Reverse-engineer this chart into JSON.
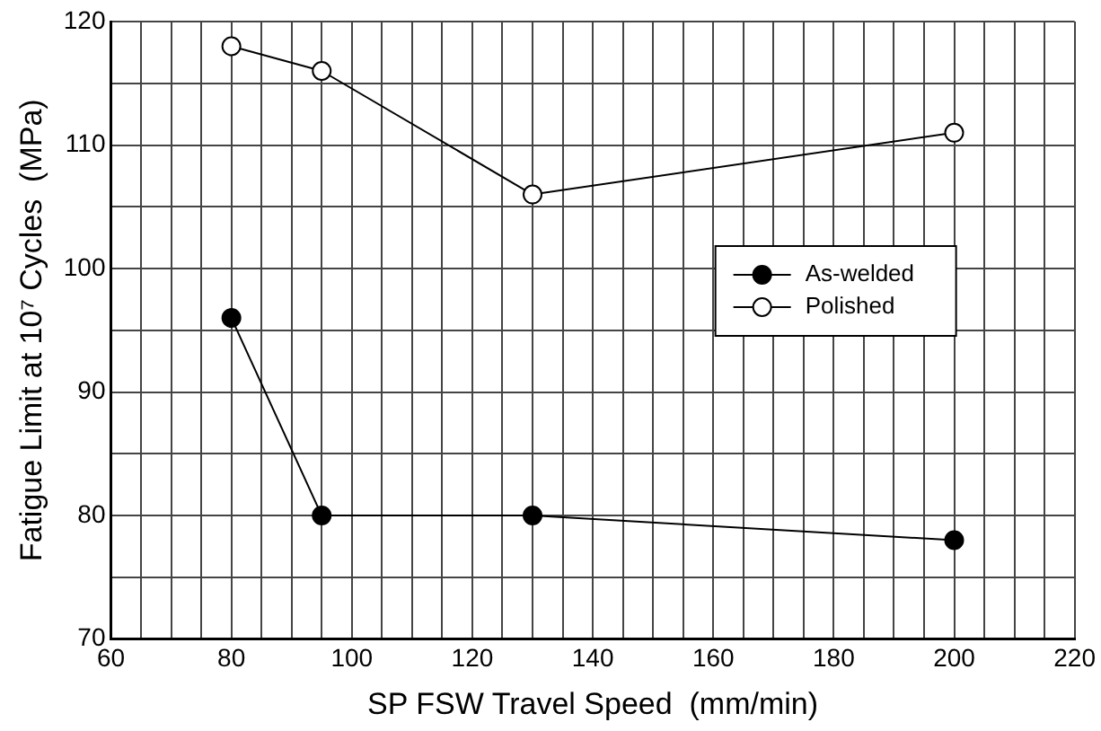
{
  "chart_data": {
    "type": "line",
    "xlabel": "SP FSW Travel Speed  (mm/min)",
    "ylabel": "Fatigue Limit at 10⁷ Cycles  (MPa)",
    "x": [
      80,
      95,
      130,
      200
    ],
    "series": [
      {
        "name": "As-welded",
        "color": "#000000",
        "values": [
          96,
          80,
          80,
          78
        ]
      },
      {
        "name": "Polished",
        "color": "#000000",
        "values": [
          118,
          116,
          106,
          111
        ]
      }
    ],
    "xlim": [
      60,
      220
    ],
    "ylim": [
      70,
      120
    ],
    "xticks": [
      60,
      {
        "value": 65,
        "label": null
      },
      {
        "value": 70,
        "label": null
      },
      {
        "value": 75,
        "label": null
      },
      80,
      {
        "value": 85,
        "label": null
      },
      {
        "value": 90,
        "label": null
      },
      {
        "value": 95,
        "label": null
      },
      100,
      {
        "value": 105,
        "label": null
      },
      {
        "value": 110,
        "label": null
      },
      {
        "value": 115,
        "label": null
      },
      120,
      {
        "value": 125,
        "label": null
      },
      {
        "value": 130,
        "label": null
      },
      {
        "value": 135,
        "label": null
      },
      140,
      {
        "value": 145,
        "label": null
      },
      {
        "value": 150,
        "label": null
      },
      {
        "value": 155,
        "label": null
      },
      160,
      {
        "value": 165,
        "label": null
      },
      {
        "value": 170,
        "label": null
      },
      {
        "value": 175,
        "label": null
      },
      180,
      {
        "value": 185,
        "label": null
      },
      {
        "value": 190,
        "label": null
      },
      {
        "value": 195,
        "label": null
      },
      200,
      {
        "value": 205,
        "label": null
      },
      {
        "value": 210,
        "label": null
      },
      {
        "value": 215,
        "label": null
      },
      220
    ],
    "yticks": [
      70,
      {
        "value": 75,
        "label": null
      },
      80,
      {
        "value": 85,
        "label": null
      },
      90,
      {
        "value": 95,
        "label": null
      },
      100,
      {
        "value": 105,
        "label": null
      },
      110,
      {
        "value": 115,
        "label": null
      },
      120
    ],
    "grid": true,
    "legend": "right",
    "marker": "circle",
    "line_style": "solid"
  }
}
